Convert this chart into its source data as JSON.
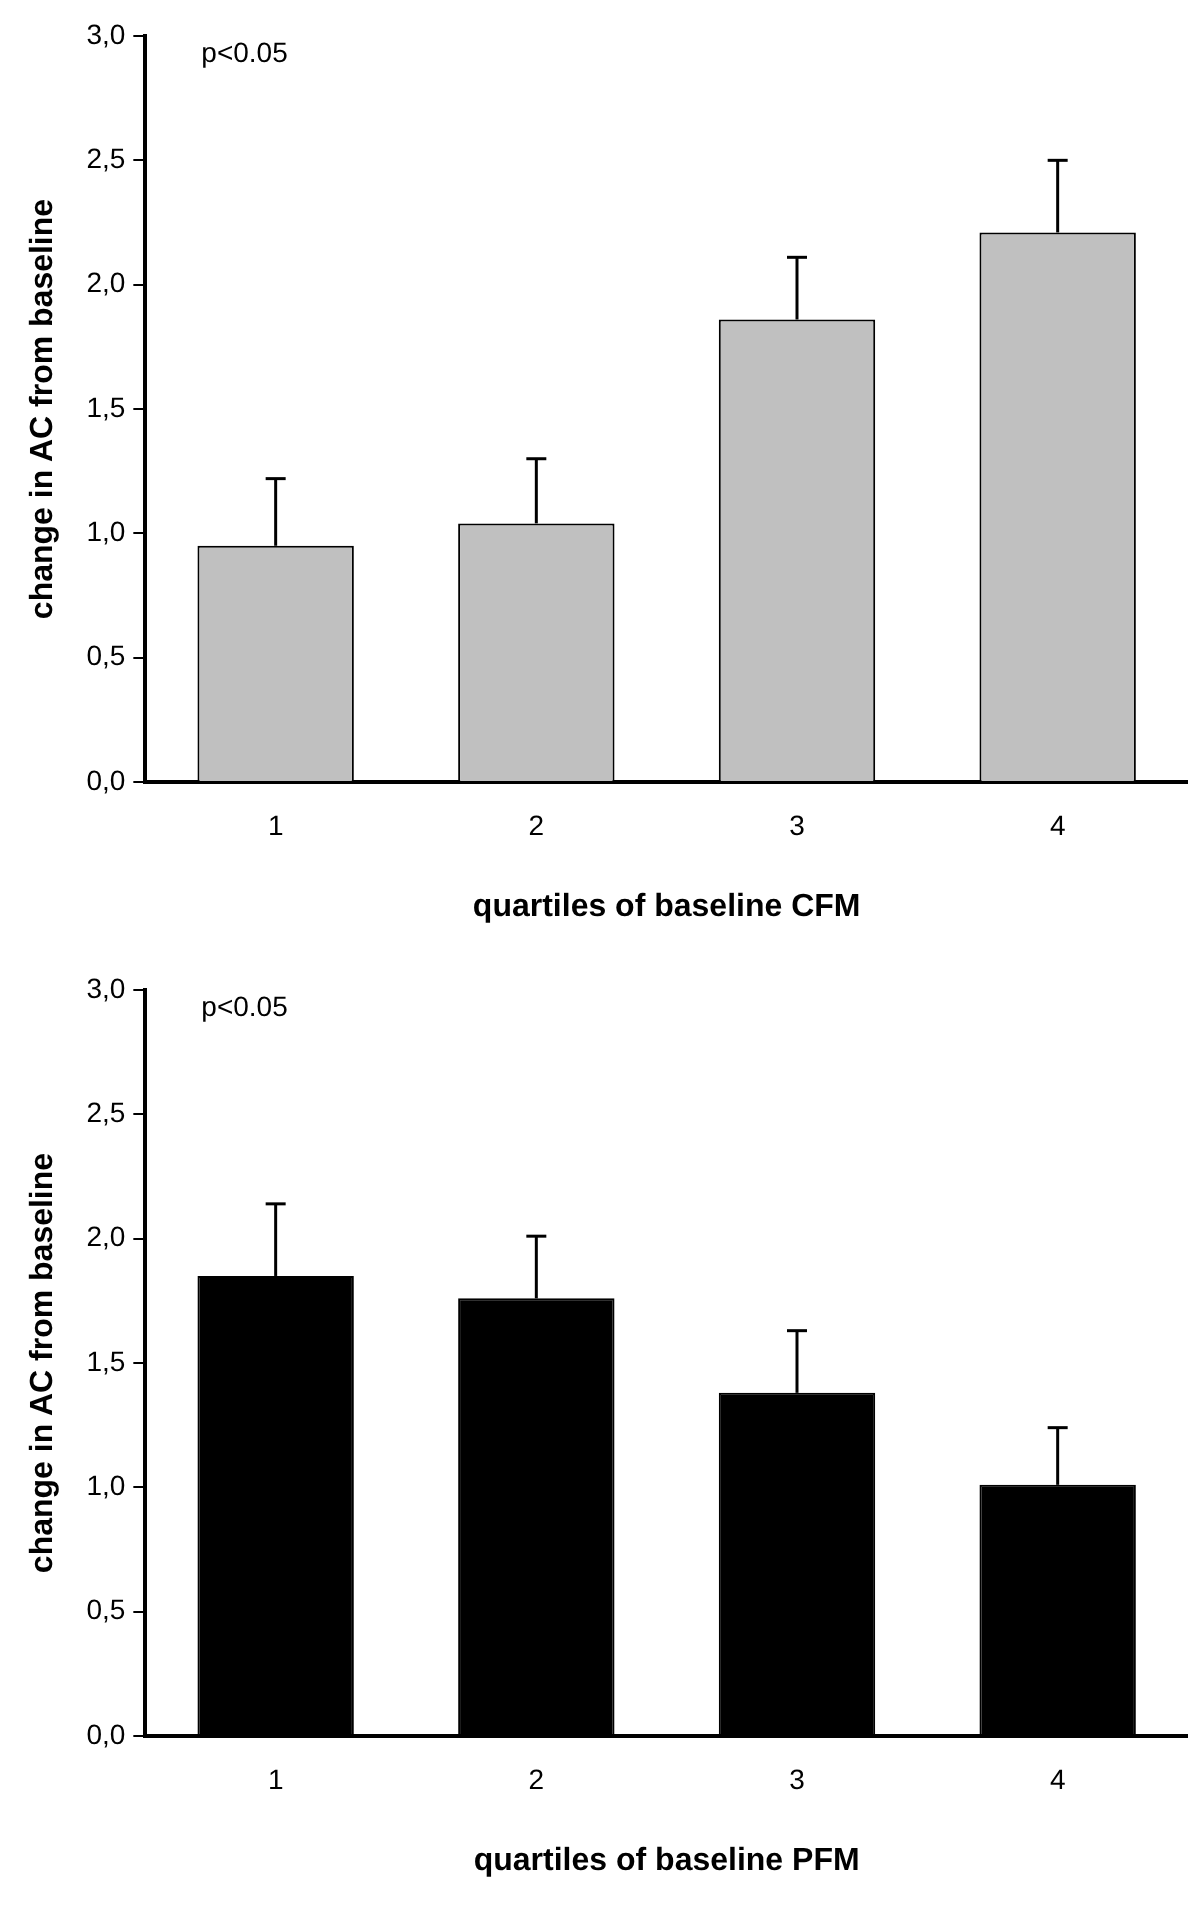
{
  "chart_data": [
    {
      "type": "bar",
      "xlabel": "quartiles of baseline CFM",
      "ylabel": "change in AC from baseline",
      "annotations": [
        "p<0.05"
      ],
      "categories": [
        "1",
        "2",
        "3",
        "4"
      ],
      "values": [
        0.95,
        1.04,
        1.86,
        2.21
      ],
      "errors": [
        [
          0.95,
          1.22
        ],
        [
          1.04,
          1.3
        ],
        [
          1.86,
          2.11
        ],
        [
          2.21,
          2.5
        ]
      ],
      "color": "#c0c0c0",
      "ylim": [
        0,
        3
      ],
      "yticks": [
        {
          "value": 0,
          "label": "0,0"
        },
        {
          "value": 0.5,
          "label": "0,5"
        },
        {
          "value": 1,
          "label": "1,0"
        },
        {
          "value": 1.5,
          "label": "1,5"
        },
        {
          "value": 2,
          "label": "2,0"
        },
        {
          "value": 2.5,
          "label": "2,5"
        },
        {
          "value": 3,
          "label": "3,0"
        }
      ],
      "grid": false,
      "legend": false
    },
    {
      "type": "bar",
      "xlabel": "quartiles of baseline PFM",
      "ylabel": "change in AC from baseline",
      "annotations": [
        "p<0.05"
      ],
      "categories": [
        "1",
        "2",
        "3",
        "4"
      ],
      "values": [
        1.85,
        1.76,
        1.38,
        1.01
      ],
      "errors": [
        [
          1.85,
          2.14
        ],
        [
          1.76,
          2.01
        ],
        [
          1.38,
          1.63
        ],
        [
          1.01,
          1.24
        ]
      ],
      "color": "#000000",
      "ylim": [
        0,
        3
      ],
      "yticks": [
        {
          "value": 0,
          "label": "0,0"
        },
        {
          "value": 0.5,
          "label": "0,5"
        },
        {
          "value": 1,
          "label": "1,0"
        },
        {
          "value": 1.5,
          "label": "1,5"
        },
        {
          "value": 2,
          "label": "2,0"
        },
        {
          "value": 2.5,
          "label": "2,5"
        },
        {
          "value": 3,
          "label": "3,0"
        }
      ],
      "grid": false,
      "legend": false
    }
  ]
}
